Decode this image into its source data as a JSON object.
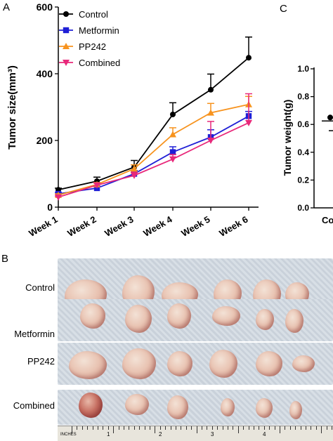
{
  "panels": {
    "a": "A",
    "b": "B",
    "c": "C"
  },
  "chart_data": [
    {
      "type": "line",
      "ylabel": "Tumor size(mm³)",
      "ylim": [
        0,
        600
      ],
      "yticks": [
        "0",
        "200",
        "400",
        "600"
      ],
      "categories": [
        "Week 1",
        "Week 2",
        "Week 3",
        "Week 4",
        "Week 5",
        "Week 6"
      ],
      "legend_position": "top-left",
      "series": [
        {
          "name": "Control",
          "color": "#000000",
          "marker": "circle",
          "values": [
            52,
            78,
            120,
            278,
            352,
            448
          ],
          "errors": [
            5,
            12,
            20,
            35,
            47,
            62
          ]
        },
        {
          "name": "Metformin",
          "color": "#1f1fd6",
          "marker": "square",
          "values": [
            40,
            57,
            100,
            165,
            210,
            273
          ],
          "errors": [
            4,
            6,
            10,
            16,
            22,
            14
          ]
        },
        {
          "name": "PP242",
          "color": "#f7931e",
          "marker": "triangle-up",
          "values": [
            36,
            68,
            115,
            218,
            283,
            308
          ],
          "errors": [
            4,
            6,
            12,
            20,
            28,
            24
          ]
        },
        {
          "name": "Combined",
          "color": "#e8287a",
          "marker": "triangle-down",
          "values": [
            30,
            66,
            95,
            144,
            200,
            253
          ],
          "errors": [
            3,
            6,
            10,
            14,
            57,
            87
          ]
        }
      ]
    },
    {
      "type": "scatter",
      "ylabel": "Tumor weight(g)",
      "ylim": [
        0,
        1.0
      ],
      "yticks": [
        "0.0",
        "0.2",
        "0.4",
        "0.6",
        "0.8",
        "1.0"
      ],
      "categories": [
        "Co"
      ],
      "points": [
        {
          "y": 0.65
        }
      ],
      "mean": 0.625,
      "error": 0.07
    }
  ],
  "photos": {
    "rows": [
      {
        "label": "Control",
        "dark_count": 0
      },
      {
        "label": "Metformin",
        "dark_count": 0
      },
      {
        "label": "PP242",
        "dark_count": 0
      },
      {
        "label": "Combined",
        "dark_count": 1
      }
    ],
    "ruler_labels": [
      "1",
      "2",
      "3",
      "4"
    ],
    "ruler_caption": "INCHES"
  }
}
